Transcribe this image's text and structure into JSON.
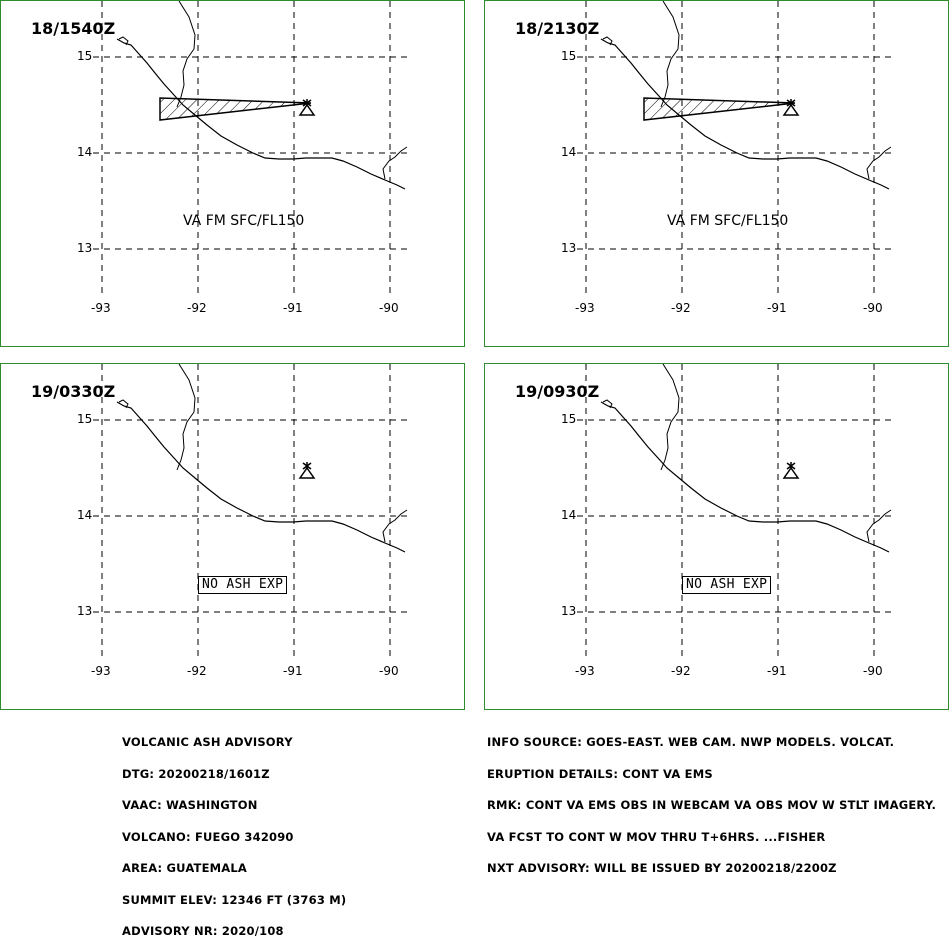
{
  "panels": [
    {
      "time": "18/1540Z",
      "ash_label": "VA FM SFC/FL150",
      "show_ash": true
    },
    {
      "time": "18/2130Z",
      "ash_label": "VA FM SFC/FL150",
      "show_ash": true
    },
    {
      "time": "19/0330Z",
      "no_ash": "NO ASH EXP",
      "show_ash": false
    },
    {
      "time": "19/0930Z",
      "no_ash": "NO ASH EXP",
      "show_ash": false
    }
  ],
  "lat_labels": [
    "15",
    "14",
    "13"
  ],
  "lon_labels": [
    "-93",
    "-92",
    "-91",
    "-90"
  ],
  "advisory_left": [
    "VOLCANIC ASH ADVISORY",
    "DTG: 20200218/1601Z",
    "VAAC: WASHINGTON",
    "VOLCANO: FUEGO 342090",
    "AREA: GUATEMALA",
    "SUMMIT ELEV: 12346 FT (3763 M)",
    "ADVISORY NR: 2020/108"
  ],
  "advisory_right": [
    "INFO SOURCE: GOES-EAST. WEB CAM. NWP MODELS. VOLCAT.",
    "ERUPTION DETAILS: CONT VA EMS",
    "RMK: CONT VA EMS OBS IN WEBCAM VA OBS MOV W STLT IMAGERY.",
    "VA FCST TO CONT W MOV THRU T+6HRS. ...FISHER",
    "NXT ADVISORY: WILL BE ISSUED BY 20200218/2200Z"
  ],
  "colors": {
    "panel_border": "#2e8b2e",
    "ink": "#000000"
  }
}
